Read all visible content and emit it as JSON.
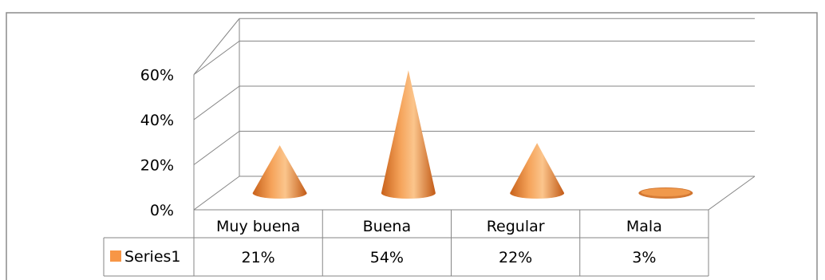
{
  "chart_data": {
    "type": "bar",
    "style": "3d-cone",
    "categories": [
      "Muy buena",
      "Buena",
      "Regular",
      "Mala"
    ],
    "series": [
      {
        "name": "Series1",
        "values": [
          21,
          54,
          22,
          3
        ],
        "value_labels": [
          "21%",
          "54%",
          "22%",
          "3%"
        ],
        "color": "#F79646"
      }
    ],
    "y_ticks": [
      "0%",
      "20%",
      "40%",
      "60%"
    ],
    "ylim": [
      0,
      60
    ],
    "grid": true,
    "data_table": true,
    "legend": "in-data-table"
  }
}
